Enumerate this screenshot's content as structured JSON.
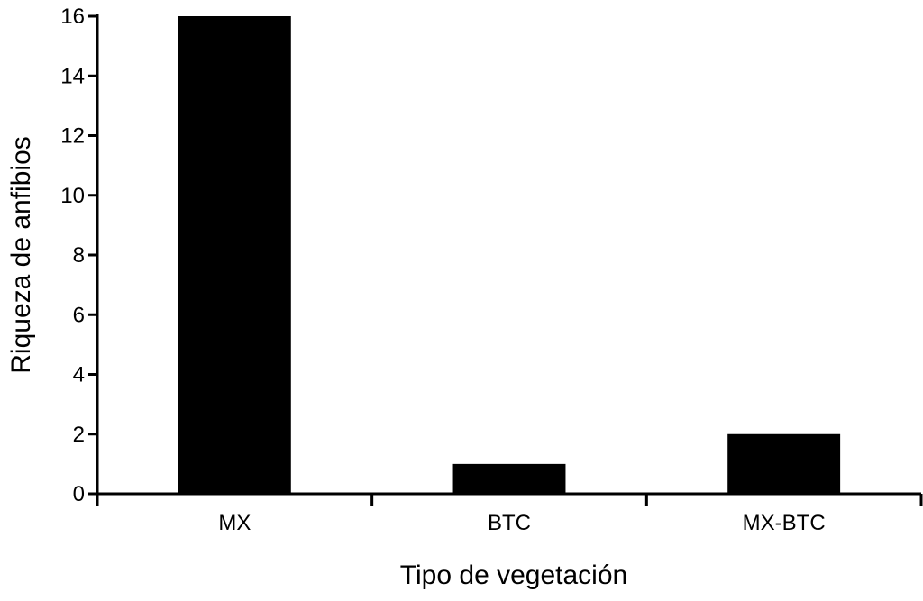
{
  "chart_data": {
    "type": "bar",
    "title": "",
    "xlabel": "Tipo de vegetación",
    "ylabel": "Riqueza de anfibios",
    "categories": [
      "MX",
      "BTC",
      "MX-BTC"
    ],
    "values": [
      16,
      1,
      2
    ],
    "ylim": [
      0,
      16
    ],
    "yticks": [
      0,
      2,
      4,
      6,
      8,
      10,
      12,
      14,
      16
    ],
    "grid": false,
    "legend": "none",
    "bar_color": "#000000",
    "axis_color": "#000000"
  }
}
